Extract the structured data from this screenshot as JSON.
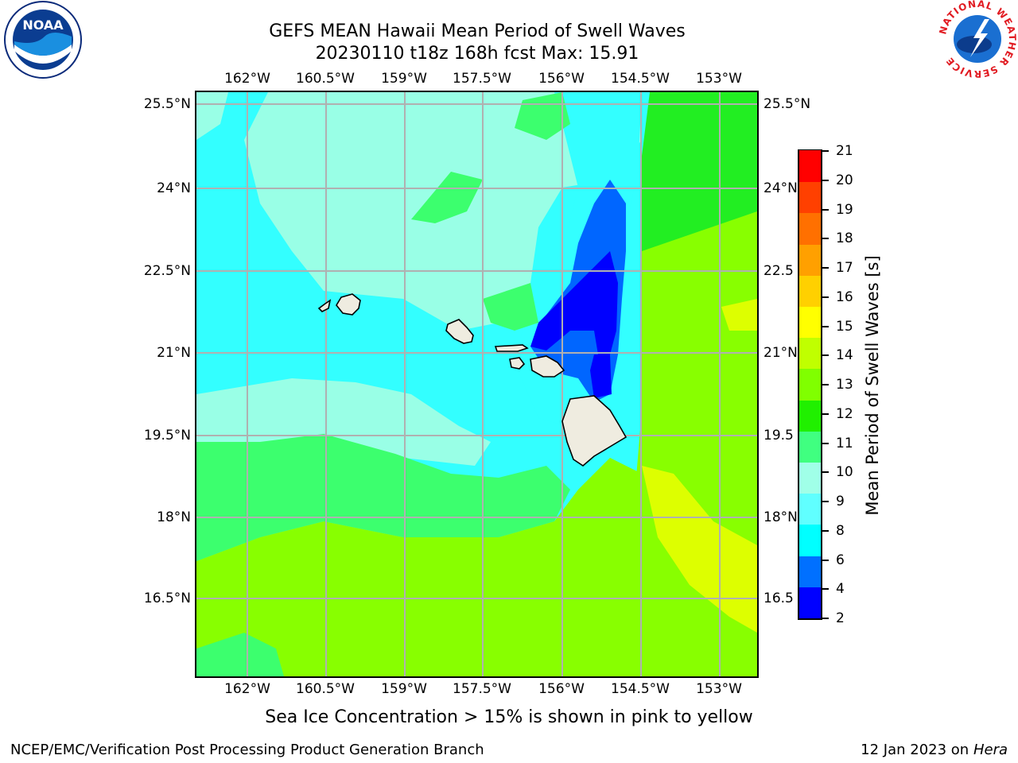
{
  "title_line1": "GEFS MEAN Hawaii Mean Period of Swell Waves",
  "title_line2": "20230110 t18z 168h fcst   Max: 15.91",
  "lon_labels": [
    "162°W",
    "160.5°W",
    "159°W",
    "157.5°W",
    "156°W",
    "154.5°W",
    "153°W"
  ],
  "lat_labels": [
    "25.5°N",
    "24°N",
    "22.5°N",
    "21°N",
    "19.5°N",
    "18°N",
    "16.5°N"
  ],
  "lat_labels_right": [
    "25.5°N",
    "24°N",
    "22.5",
    "21°N",
    "19.5",
    "18°N",
    "16.5"
  ],
  "colorbar": {
    "title": "Mean Period of Swell Waves [s]",
    "ticks": [
      "2",
      "4",
      "6",
      "8",
      "9",
      "10",
      "11",
      "12",
      "13",
      "14",
      "15",
      "16",
      "17",
      "18",
      "19",
      "20",
      "21"
    ],
    "colors": [
      "#0000ff",
      "#0070ff",
      "#00ffff",
      "#60ffff",
      "#a0ffe8",
      "#40ff80",
      "#20f000",
      "#80ff00",
      "#c0ff00",
      "#ffff00",
      "#ffd000",
      "#ffa000",
      "#ff7000",
      "#ff4000",
      "#ff0000"
    ]
  },
  "note": "Sea Ice Concentration > 15% is shown in pink to yellow",
  "footer_left": "NCEP/EMC/Verification Post Processing Product Generation Branch",
  "footer_right_prefix": "12 Jan 2023 on ",
  "footer_right_host": "Hera",
  "logos": {
    "left": "noaa-logo",
    "right": "nws-logo",
    "noaa_text": "NOAA",
    "nws_ring": "NATIONAL WEATHER SERVICE"
  },
  "map": {
    "region": "Hawaii",
    "colors": {
      "ocean_cyan": "#33ffff",
      "ocean_pale": "#99ffe6",
      "green": "#3cff6e",
      "bright_green": "#22ee22",
      "yellow_green": "#88ff00",
      "yellow": "#ddff00",
      "blue": "#0066ff",
      "deep_blue": "#0000ff",
      "land": "#efece0",
      "grid": "#b0b0b0"
    }
  }
}
